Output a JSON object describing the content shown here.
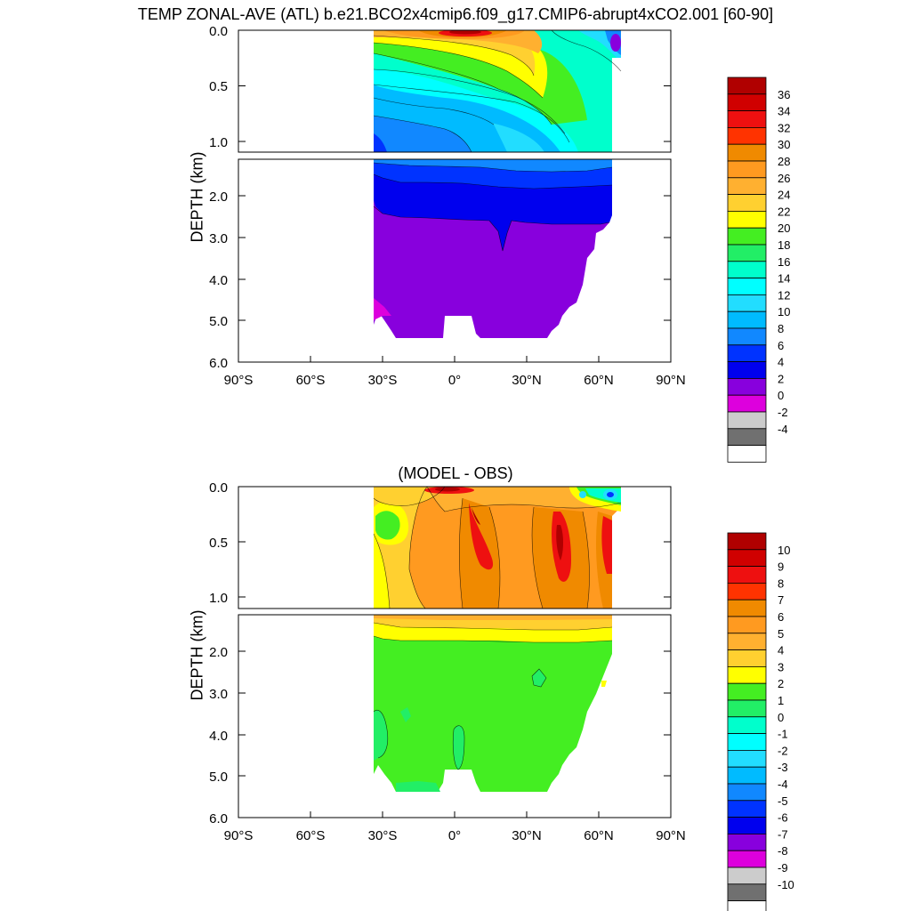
{
  "title": "TEMP ZONAL-AVE (ATL) b.e21.BCO2x4cmip6.f09_g17.CMIP6-abrupt4xCO2.001 [60-90]",
  "chart_data": [
    {
      "type": "heatmap",
      "panel": "top",
      "title": "",
      "xlabel": "",
      "ylabel": "DEPTH (km)",
      "xlim": [
        -90,
        90
      ],
      "x_ticks": [
        "90°S",
        "60°S",
        "30°S",
        "0°",
        "30°N",
        "60°N",
        "90°N"
      ],
      "ylim": [
        0,
        6
      ],
      "y_ticks_upper": [
        "0.0",
        "0.5",
        "1.0"
      ],
      "y_ticks_lower": [
        "2.0",
        "3.0",
        "4.0",
        "5.0",
        "6.0"
      ],
      "colorbar_levels": [
        "36",
        "34",
        "32",
        "30",
        "28",
        "26",
        "24",
        "22",
        "20",
        "18",
        "16",
        "14",
        "12",
        "10",
        "8",
        "6",
        "4",
        "2",
        "0",
        "-2",
        "-4"
      ],
      "colorbar_colors": [
        "#b00000",
        "#d00000",
        "#ee1010",
        "#ff3300",
        "#f08a00",
        "#ff9a20",
        "#ffb030",
        "#ffd030",
        "#ffff00",
        "#44ee22",
        "#22ee66",
        "#00ffcc",
        "#00ffff",
        "#22ddff",
        "#00bbff",
        "#1188ff",
        "#0033ff",
        "#0000ee",
        "#8800dd",
        "#dd00dd",
        "#cccccc",
        "#707070",
        "#ffffff"
      ]
    },
    {
      "type": "heatmap",
      "panel": "bottom",
      "title": "(MODEL - OBS)",
      "xlabel": "",
      "ylabel": "DEPTH (km)",
      "xlim": [
        -90,
        90
      ],
      "x_ticks": [
        "90°S",
        "60°S",
        "30°S",
        "0°",
        "30°N",
        "60°N",
        "90°N"
      ],
      "ylim": [
        0,
        6
      ],
      "y_ticks_upper": [
        "0.0",
        "0.5",
        "1.0"
      ],
      "y_ticks_lower": [
        "2.0",
        "3.0",
        "4.0",
        "5.0",
        "6.0"
      ],
      "colorbar_levels": [
        "10",
        "9",
        "8",
        "7",
        "6",
        "5",
        "4",
        "3",
        "2",
        "1",
        "0",
        "-1",
        "-2",
        "-3",
        "-4",
        "-5",
        "-6",
        "-7",
        "-8",
        "-9",
        "-10"
      ],
      "colorbar_colors": [
        "#b00000",
        "#d00000",
        "#ee1010",
        "#ff3300",
        "#f08a00",
        "#ff9a20",
        "#ffb030",
        "#ffd030",
        "#ffff00",
        "#44ee22",
        "#22ee66",
        "#00ffcc",
        "#00ffff",
        "#22ddff",
        "#00bbff",
        "#1188ff",
        "#0033ff",
        "#0000ee",
        "#8800dd",
        "#dd00dd",
        "#cccccc",
        "#707070",
        "#ffffff"
      ]
    }
  ]
}
